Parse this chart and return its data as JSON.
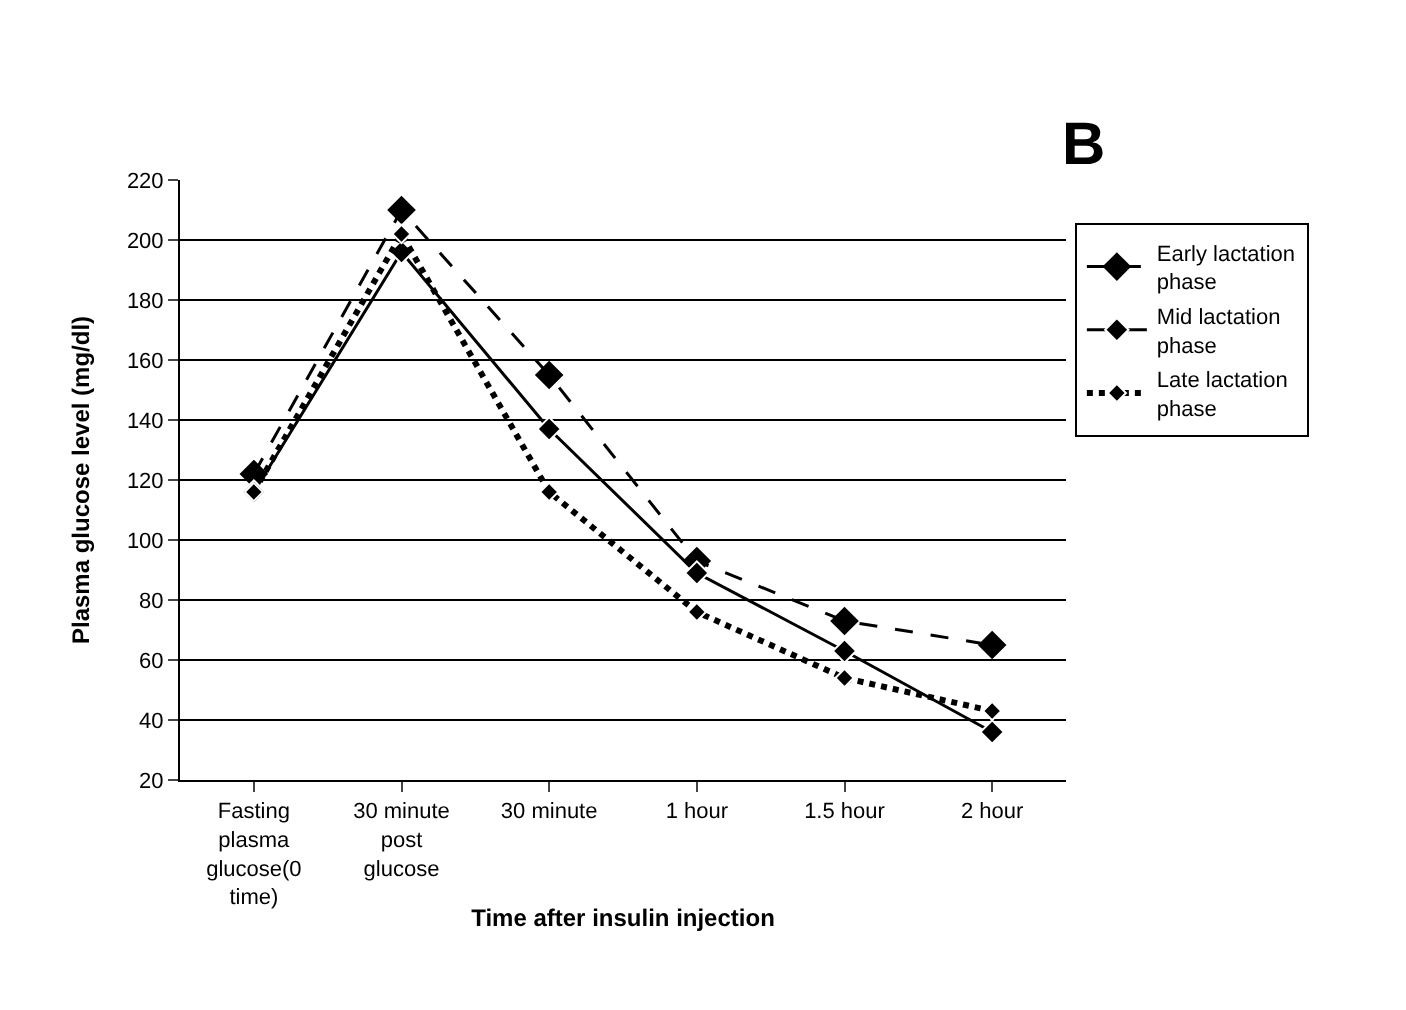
{
  "chart_data": {
    "type": "line",
    "xlabel": "Time after insulin injection",
    "ylabel": "Plasma glucose level (mg/dl)",
    "categories": [
      "Fasting plasma glucose(0 time)",
      "30 minute post glucose",
      "30 minute",
      "1 hour",
      "1.5 hour",
      "2 hour"
    ],
    "series": [
      {
        "name": "Early lactation phase",
        "color": "#000000",
        "line_style": "dashed",
        "values": [
          122,
          210,
          155,
          93,
          73,
          65
        ]
      },
      {
        "name": "Mid lactation phase",
        "color": "#000000",
        "line_style": "solid",
        "values": [
          116,
          196,
          137,
          89,
          63,
          36
        ]
      },
      {
        "name": "Late lactation phase",
        "color": "#000000",
        "line_style": "dotted",
        "values": [
          116,
          202,
          116,
          76,
          54,
          43
        ]
      }
    ],
    "ylim": [
      20,
      220
    ],
    "yticks": [
      20,
      40,
      60,
      80,
      100,
      120,
      140,
      160,
      180,
      200,
      220
    ],
    "grid": "y",
    "legend": "right",
    "marker": "diamond",
    "annotations": [
      "B"
    ]
  }
}
